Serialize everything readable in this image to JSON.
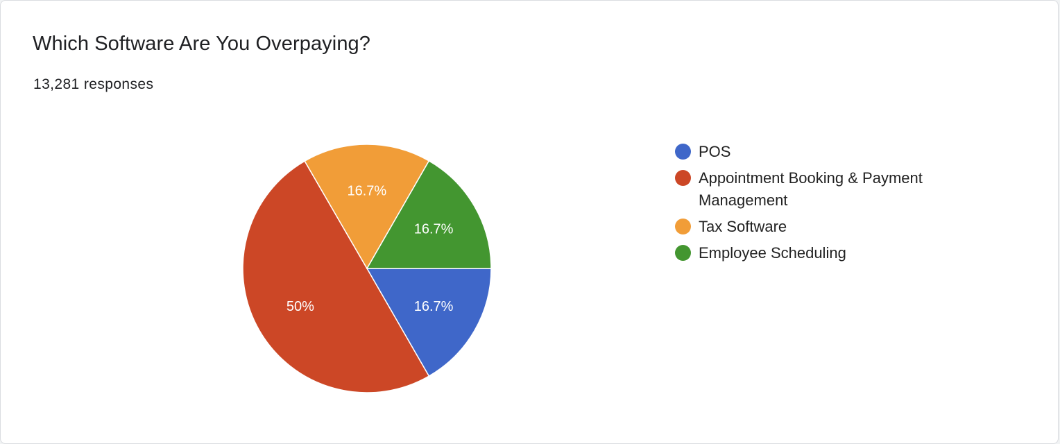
{
  "card": {
    "title": "Which Software Are You Overpaying?",
    "responses": "13,281 responses"
  },
  "chart_data": {
    "type": "pie",
    "categories": [
      "POS",
      "Appointment Booking & Payment Management",
      "Tax Software",
      "Employee Scheduling"
    ],
    "values": [
      16.7,
      50,
      16.7,
      16.7
    ],
    "slice_labels": [
      "16.7%",
      "50%",
      "16.7%",
      "16.7%"
    ],
    "colors": [
      "#3f67c9",
      "#cc4726",
      "#f19d38",
      "#439630"
    ],
    "legend_position": "right"
  }
}
